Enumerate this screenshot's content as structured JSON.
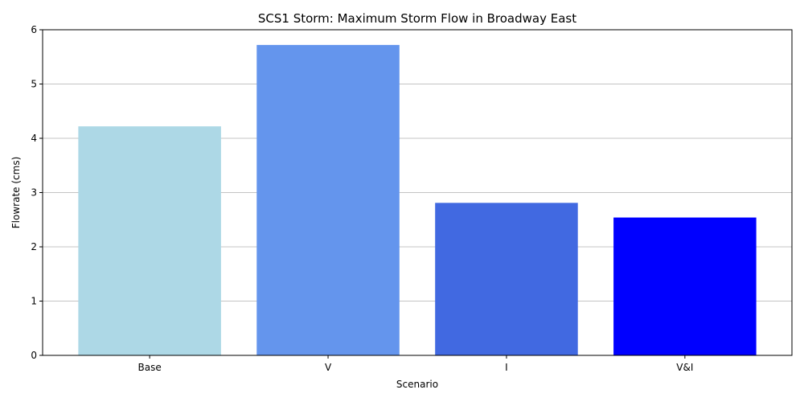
{
  "chart_data": {
    "type": "bar",
    "title": "SCS1 Storm: Maximum Storm Flow in Broadway East",
    "xlabel": "Scenario",
    "ylabel": "Flowrate (cms)",
    "categories": [
      "Base",
      "V",
      "I",
      "V&I"
    ],
    "values": [
      4.22,
      5.72,
      2.81,
      2.54
    ],
    "colors": [
      "#add8e6",
      "#6495ed",
      "#4169e1",
      "#0000ff"
    ],
    "ylim": [
      0,
      6
    ],
    "yticks": [
      0,
      1,
      2,
      3,
      4,
      5,
      6
    ],
    "grid": "y-major"
  }
}
